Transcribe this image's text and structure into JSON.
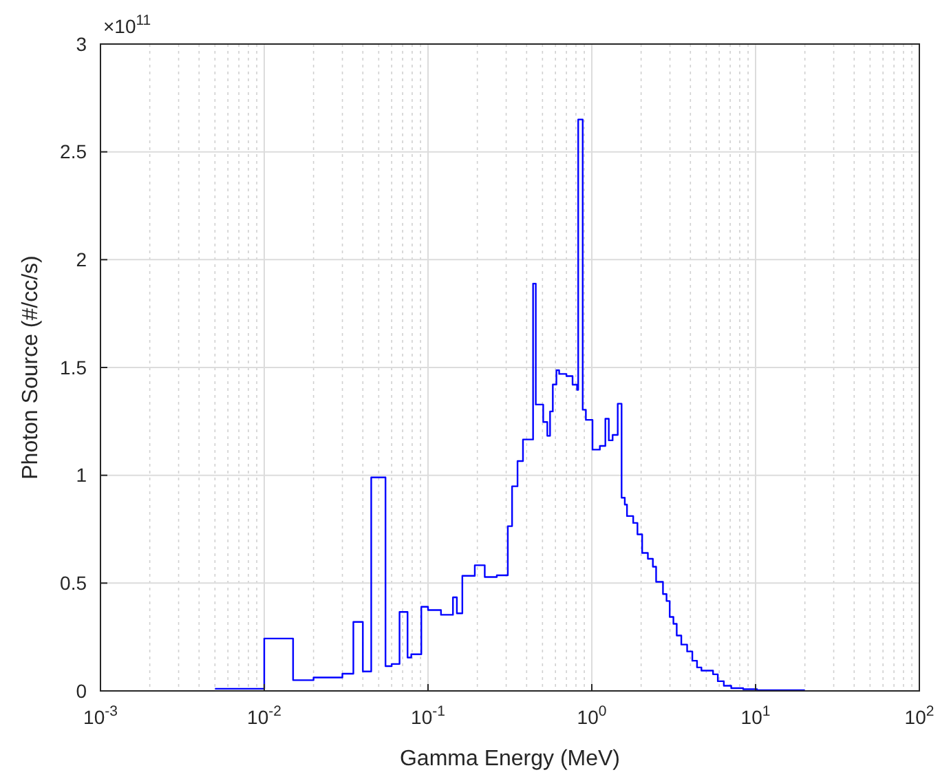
{
  "chart_data": {
    "type": "step",
    "xlabel": "Gamma Energy (MeV)",
    "ylabel": "Photon Source (#/cc/s)",
    "log": "x",
    "grid": true,
    "line_style": "solid",
    "xlim": [
      0.001,
      100
    ],
    "xticks": [
      {
        "value": 0.001,
        "label": "10$^{-3}$"
      },
      {
        "value": 0.01,
        "label": "10$^{-2}$"
      },
      {
        "value": 0.1,
        "label": "10$^{-1}$"
      },
      {
        "value": 1,
        "label": "10$^{0}$"
      },
      {
        "value": 10,
        "label": "10$^{1}$"
      },
      {
        "value": 100,
        "label": "10$^{2}$"
      }
    ],
    "ylim": [
      0,
      3
    ],
    "yticks": [
      0,
      0.5,
      1,
      1.5,
      2,
      2.5,
      3
    ],
    "annotations": [
      "×10$^{11}$"
    ],
    "x": [
      0.005,
      0.01,
      0.015,
      0.02,
      0.03,
      0.035,
      0.04,
      0.045,
      0.055,
      0.06,
      0.067,
      0.075,
      0.079,
      0.091,
      0.1,
      0.12,
      0.142,
      0.15,
      0.162,
      0.193,
      0.222,
      0.263,
      0.307,
      0.326,
      0.352,
      0.38,
      0.438,
      0.455,
      0.505,
      0.535,
      0.556,
      0.578,
      0.608,
      0.632,
      0.7,
      0.763,
      0.813,
      0.826,
      0.88,
      0.92,
      1.01,
      1.12,
      1.21,
      1.27,
      1.34,
      1.44,
      1.52,
      1.59,
      1.64,
      1.79,
      1.9,
      2.03,
      2.2,
      2.36,
      2.47,
      2.72,
      2.86,
      2.99,
      3.15,
      3.3,
      3.52,
      3.82,
      4.11,
      4.39,
      4.67,
      5.5,
      5.88,
      6.4,
      7.1,
      8.4,
      10.2,
      20
    ],
    "series": [
      {
        "color": "#0000ff",
        "values": [
          0.01,
          0.243,
          0.05,
          0.062,
          0.08,
          0.32,
          0.09,
          0.99,
          0.115,
          0.125,
          0.366,
          0.155,
          0.17,
          0.39,
          0.375,
          0.353,
          0.434,
          0.36,
          0.534,
          0.583,
          0.528,
          0.536,
          0.764,
          0.949,
          1.066,
          1.166,
          1.889,
          1.328,
          1.247,
          1.183,
          1.296,
          1.421,
          1.487,
          1.47,
          1.46,
          1.42,
          1.396,
          2.65,
          1.304,
          1.257,
          1.119,
          1.136,
          1.262,
          1.162,
          1.187,
          1.332,
          0.896,
          0.864,
          0.811,
          0.779,
          0.726,
          0.64,
          0.613,
          0.576,
          0.506,
          0.449,
          0.417,
          0.343,
          0.311,
          0.257,
          0.215,
          0.183,
          0.14,
          0.109,
          0.094,
          0.077,
          0.045,
          0.024,
          0.013,
          0.008,
          0.003,
          0.003
        ]
      }
    ]
  }
}
